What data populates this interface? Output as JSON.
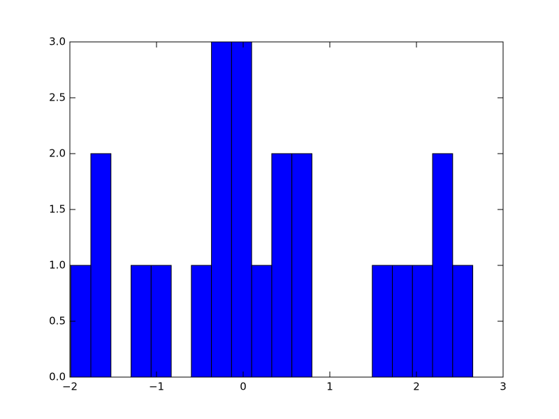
{
  "chart_data": {
    "type": "histogram",
    "bins": [
      -1.99,
      -1.758,
      -1.526,
      -1.294,
      -1.062,
      -0.83,
      -0.598,
      -0.366,
      -0.134,
      0.098,
      0.33,
      0.562,
      0.794,
      1.026,
      1.258,
      1.49,
      1.722,
      1.954,
      2.186,
      2.418,
      2.65
    ],
    "counts": [
      1,
      2,
      0,
      1,
      1,
      0,
      1,
      3,
      3,
      1,
      2,
      2,
      0,
      0,
      0,
      1,
      1,
      1,
      2,
      1
    ],
    "color": "#0000ff",
    "xlim": [
      -2,
      3
    ],
    "xticks": [
      {
        "value": -2,
        "label": "−2"
      },
      {
        "value": -1,
        "label": "−1"
      },
      0,
      1,
      2,
      3
    ],
    "ylim": [
      0,
      3
    ],
    "yticks": [
      {
        "value": 0,
        "label": "0.0"
      },
      {
        "value": 0.5,
        "label": "0.5"
      },
      {
        "value": 1,
        "label": "1.0"
      },
      {
        "value": 1.5,
        "label": "1.5"
      },
      {
        "value": 2,
        "label": "2.0"
      },
      {
        "value": 2.5,
        "label": "2.5"
      },
      {
        "value": 3,
        "label": "3.0"
      }
    ],
    "grid": false
  }
}
